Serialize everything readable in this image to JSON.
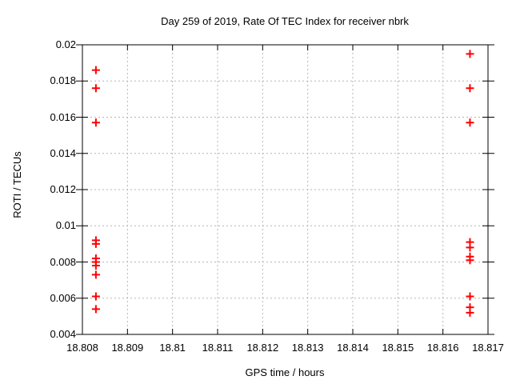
{
  "chart_data": {
    "type": "scatter",
    "title": "Day 259 of 2019, Rate Of TEC Index for receiver nbrk",
    "xlabel": "GPS time / hours",
    "ylabel": "ROTI / TECUs",
    "xlim": [
      18.808,
      18.817
    ],
    "ylim": [
      0.004,
      0.02
    ],
    "xtick_values": [
      18.808,
      18.809,
      18.81,
      18.811,
      18.812,
      18.813,
      18.814,
      18.815,
      18.816,
      18.817
    ],
    "xtick_labels": [
      "18.808",
      "18.809",
      "18.81",
      "18.811",
      "18.812",
      "18.813",
      "18.814",
      "18.815",
      "18.816",
      "18.817"
    ],
    "ytick_values": [
      0.004,
      0.006,
      0.008,
      0.01,
      0.012,
      0.014,
      0.016,
      0.018,
      0.02
    ],
    "ytick_labels": [
      "0.004",
      "0.006",
      "0.008",
      "0.01",
      "0.012",
      "0.014",
      "0.016",
      "0.018",
      "0.02"
    ],
    "grid": true,
    "legend": false,
    "grid_color": "#b4b4b4",
    "axis_color": "#000000",
    "marker": {
      "shape": "plus",
      "color": "#ff0000",
      "size": 11
    },
    "series": [
      {
        "name": "ROTI",
        "points": [
          [
            18.8083,
            0.0186
          ],
          [
            18.8083,
            0.0176
          ],
          [
            18.8083,
            0.0157
          ],
          [
            18.8083,
            0.0092
          ],
          [
            18.8083,
            0.009
          ],
          [
            18.8083,
            0.0082
          ],
          [
            18.8083,
            0.008
          ],
          [
            18.8083,
            0.0078
          ],
          [
            18.8083,
            0.0073
          ],
          [
            18.8083,
            0.0061
          ],
          [
            18.8083,
            0.0054
          ],
          [
            18.8166,
            0.0195
          ],
          [
            18.8166,
            0.0176
          ],
          [
            18.8166,
            0.0157
          ],
          [
            18.8166,
            0.0091
          ],
          [
            18.8166,
            0.0088
          ],
          [
            18.8166,
            0.0083
          ],
          [
            18.8166,
            0.0081
          ],
          [
            18.8166,
            0.0061
          ],
          [
            18.8166,
            0.0055
          ],
          [
            18.8166,
            0.0052
          ]
        ]
      }
    ]
  }
}
